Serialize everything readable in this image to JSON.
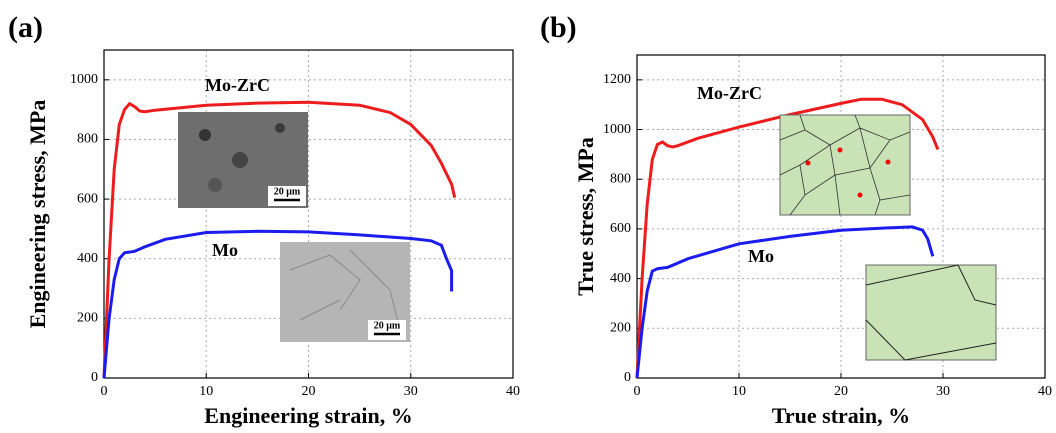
{
  "chart_data": [
    {
      "type": "line",
      "panel_label": "(a)",
      "xlabel": "Engineering strain,  %",
      "ylabel": "Engineering stress,  MPa",
      "xlim": [
        0,
        40
      ],
      "ylim": [
        0,
        1100
      ],
      "xticks": [
        0,
        10,
        20,
        30,
        40
      ],
      "yticks": [
        0,
        200,
        400,
        600,
        800,
        1000
      ],
      "grid": true,
      "series": [
        {
          "name": "Mo-ZrC",
          "color": "#ee1c1c",
          "x": [
            0,
            0.5,
            1,
            1.5,
            2,
            2.5,
            3,
            3.5,
            4,
            5,
            10,
            15,
            20,
            25,
            28,
            30,
            32,
            33,
            34,
            34.3
          ],
          "values": [
            0,
            400,
            700,
            850,
            900,
            920,
            910,
            895,
            893,
            898,
            915,
            922,
            925,
            915,
            890,
            850,
            780,
            720,
            650,
            605
          ]
        },
        {
          "name": "Mo",
          "color": "#1c1cee",
          "x": [
            0,
            0.5,
            1,
            1.5,
            2,
            3,
            4,
            6,
            10,
            15,
            20,
            25,
            30,
            32,
            33,
            33.5,
            34,
            34
          ],
          "values": [
            0,
            200,
            330,
            400,
            420,
            425,
            440,
            465,
            488,
            492,
            490,
            480,
            468,
            460,
            445,
            400,
            360,
            290
          ]
        }
      ],
      "scale_bars": [
        "20 μm",
        "20 μm"
      ]
    },
    {
      "type": "line",
      "panel_label": "(b)",
      "xlabel": "True strain,  %",
      "ylabel": "True stress,  MPa",
      "xlim": [
        0,
        40
      ],
      "ylim": [
        0,
        1300
      ],
      "xticks": [
        0,
        10,
        20,
        30,
        40
      ],
      "yticks": [
        0,
        200,
        400,
        600,
        800,
        1000,
        1200
      ],
      "grid": true,
      "series": [
        {
          "name": "Mo-ZrC",
          "color": "#ee1c1c",
          "x": [
            0,
            0.5,
            1,
            1.5,
            2,
            2.5,
            3,
            3.5,
            4,
            6,
            10,
            15,
            20,
            22,
            24,
            26,
            28,
            29,
            29.5
          ],
          "values": [
            0,
            400,
            700,
            880,
            940,
            950,
            935,
            930,
            935,
            965,
            1010,
            1060,
            1105,
            1122,
            1122,
            1100,
            1040,
            970,
            920
          ]
        },
        {
          "name": "Mo",
          "color": "#1c1cee",
          "x": [
            0,
            0.5,
            1,
            1.5,
            2,
            3,
            5,
            10,
            15,
            20,
            25,
            27,
            28,
            28.5,
            29
          ],
          "values": [
            0,
            200,
            350,
            430,
            440,
            445,
            480,
            540,
            570,
            595,
            605,
            608,
            595,
            560,
            490
          ]
        }
      ]
    }
  ]
}
